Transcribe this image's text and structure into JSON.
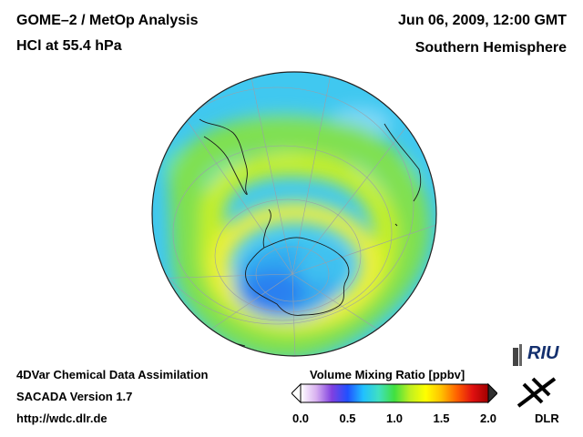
{
  "header": {
    "instrument": "GOME–2 / MetOp Analysis",
    "species": "HCl at 55.4 hPa",
    "datetime": "Jun 06, 2009, 12:00 GMT",
    "hemisphere": "Southern Hemisphere"
  },
  "footer": {
    "method": "4DVar Chemical Data Assimilation",
    "version": "SACADA Version 1.7",
    "url": "http://wdc.dlr.de"
  },
  "colorbar": {
    "title": "Volume Mixing Ratio [ppbv]",
    "min": 0.0,
    "max": 2.0,
    "ticks": [
      "0.0",
      "0.5",
      "1.0",
      "1.5",
      "2.0"
    ],
    "colors": [
      "#ffffff",
      "#d8b0f0",
      "#8040e0",
      "#2050ff",
      "#20c0ff",
      "#40e0c0",
      "#40e040",
      "#c0f020",
      "#ffff00",
      "#ffc000",
      "#ff6000",
      "#e01010",
      "#a00000"
    ]
  },
  "map": {
    "projection": "orthographic, south pole centered",
    "field_description_levels": {
      "background": 0.65,
      "mid_latitude_band": 1.25,
      "polar_collar": 1.4,
      "vortex_core": 0.45
    }
  },
  "logos": {
    "riu": "RIU",
    "dlr": "DLR"
  }
}
